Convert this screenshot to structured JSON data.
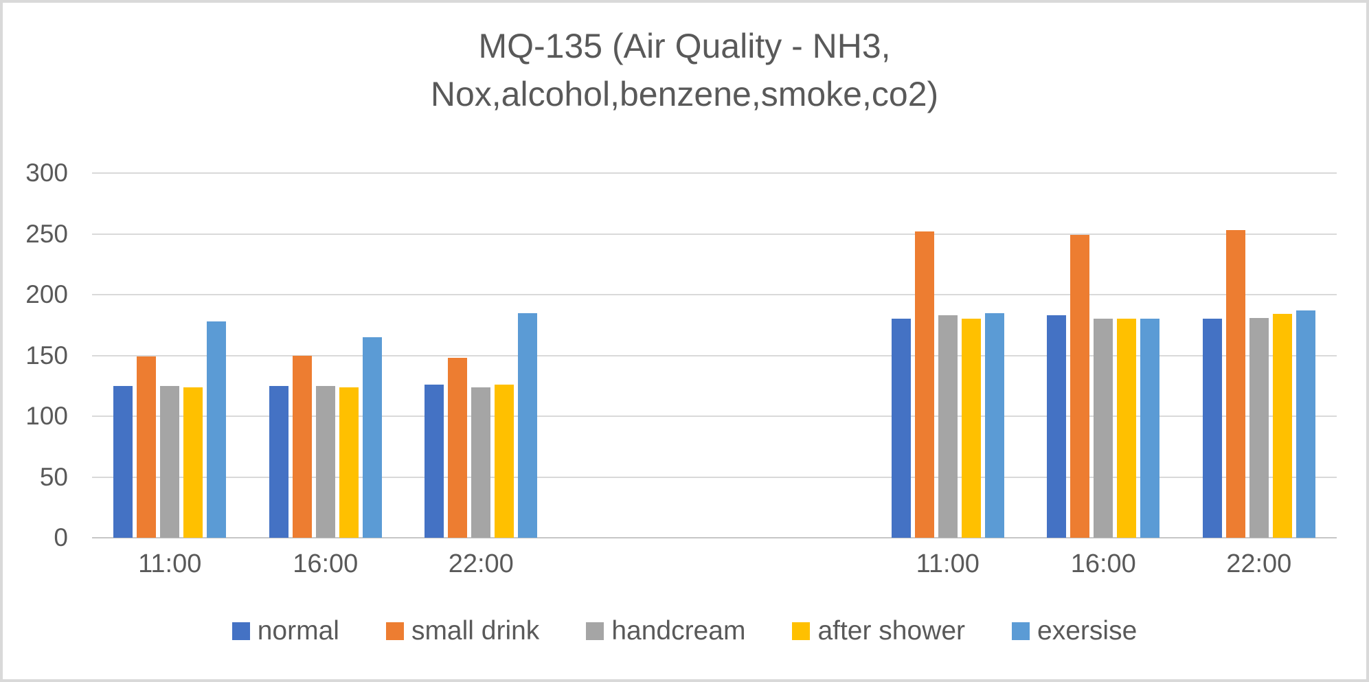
{
  "chart_data": {
    "type": "bar",
    "title_lines": [
      "MQ-135 (Air Quality - NH3,",
      "Nox,alcohol,benzene,smoke,co2)"
    ],
    "title": "MQ-135 (Air Quality - NH3, Nox,alcohol,benzene,smoke,co2)",
    "groups": [
      {
        "categories": [
          "11:00",
          "16:00",
          "22:00"
        ]
      },
      {
        "categories": [
          "11:00",
          "16:00",
          "22:00"
        ]
      }
    ],
    "series": [
      {
        "name": "normal",
        "color": "#4472C4",
        "values": [
          [
            125,
            125,
            126
          ],
          [
            180,
            183,
            180
          ]
        ]
      },
      {
        "name": "small drink",
        "color": "#ED7D31",
        "values": [
          [
            149,
            150,
            148
          ],
          [
            252,
            249,
            253
          ]
        ]
      },
      {
        "name": "handcream",
        "color": "#A5A5A5",
        "values": [
          [
            125,
            125,
            124
          ],
          [
            183,
            180,
            181
          ]
        ]
      },
      {
        "name": "after shower",
        "color": "#FFC000",
        "values": [
          [
            124,
            124,
            126
          ],
          [
            180,
            180,
            184
          ]
        ]
      },
      {
        "name": "exersise",
        "color": "#5B9BD5",
        "values": [
          [
            178,
            165,
            185
          ],
          [
            185,
            180,
            187
          ]
        ]
      }
    ],
    "ylim": [
      0,
      300
    ],
    "yticks": [
      0,
      50,
      100,
      150,
      200,
      250,
      300
    ],
    "xlabel": "",
    "ylabel": "",
    "grid": true,
    "legend_position": "bottom",
    "colors": {
      "text": "#595959",
      "gridline": "#D9D9D9",
      "axis_line": "#C6C6C6",
      "frame_border": "#D9D9D9",
      "background": "#FFFFFF"
    }
  }
}
